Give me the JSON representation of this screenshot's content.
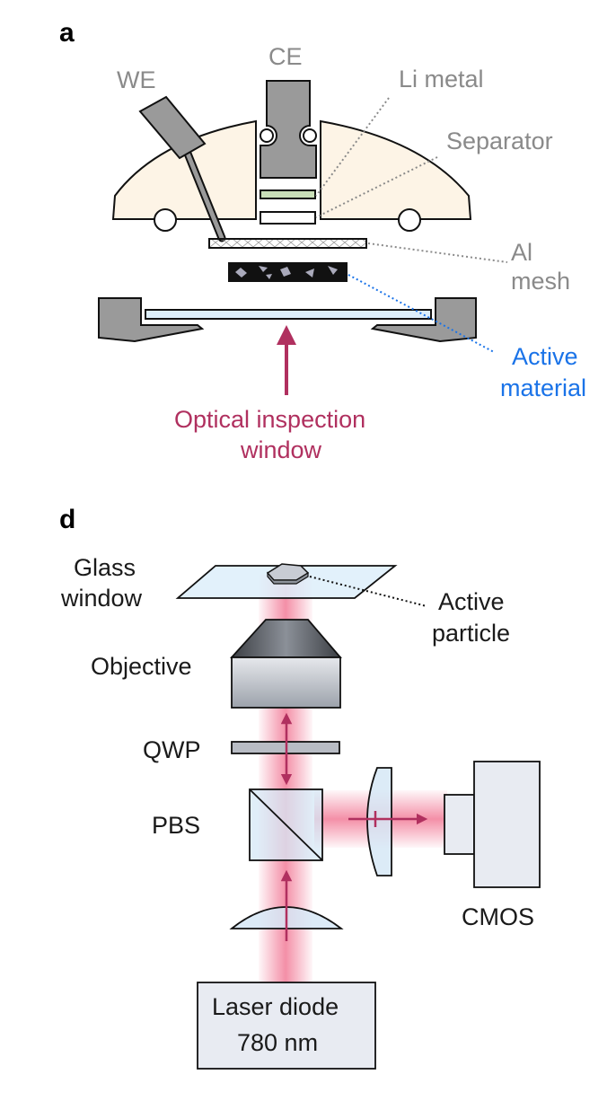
{
  "panel_a": {
    "letter": "a",
    "labels": {
      "we": "WE",
      "ce": "CE",
      "li_metal": "Li metal",
      "separator": "Separator",
      "al_mesh_line1": "Al",
      "al_mesh_line2": "mesh",
      "active_material_line1": "Active",
      "active_material_line2": "material",
      "optical_window_line1": "Optical inspection",
      "optical_window_line2": "window"
    },
    "colors": {
      "cell_fill": "#fdf4e6",
      "metal": "#9a9a9a",
      "li_metal": "#c9dfb8",
      "active_material": "#111111",
      "window_glass": "#ddeefa",
      "optical_arrow": "#b0305f",
      "active_label": "#1a73e8",
      "leader": "#8a8a8a"
    }
  },
  "panel_d": {
    "letter": "d",
    "labels": {
      "glass_window_line1": "Glass",
      "glass_window_line2": "window",
      "active_particle_line1": "Active",
      "active_particle_line2": "particle",
      "objective": "Objective",
      "qwp": "QWP",
      "pbs": "PBS",
      "cmos": "CMOS",
      "laser_line1": "Laser diode",
      "laser_line2": "780 nm"
    },
    "colors": {
      "beam": "#f06a8a",
      "arrow": "#b0305f",
      "optics": "#d6e8f6",
      "objective": "#b8bcc4",
      "housing": "#e8ebf2"
    }
  }
}
